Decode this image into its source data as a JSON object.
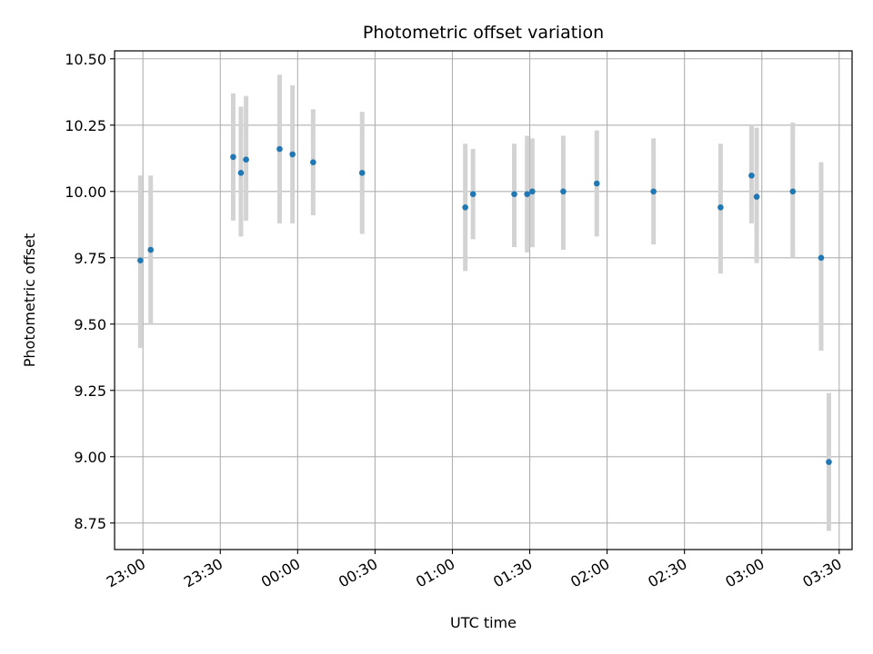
{
  "chart_data": {
    "type": "scatter",
    "title": "Photometric offset variation",
    "xlabel": "UTC time",
    "ylabel": "Photometric offset",
    "x_unit": "UTC time (hours:minutes; values after midnight written as 24:xx, 25:xx ...)",
    "xlim": [
      "22:49",
      "27:35"
    ],
    "ylim": [
      8.65,
      10.53
    ],
    "grid": true,
    "x_ticks": [
      {
        "value": "23:00",
        "label": "23:00"
      },
      {
        "value": "23:30",
        "label": "23:30"
      },
      {
        "value": "24:00",
        "label": "00:00"
      },
      {
        "value": "24:30",
        "label": "00:30"
      },
      {
        "value": "25:00",
        "label": "01:00"
      },
      {
        "value": "25:30",
        "label": "01:30"
      },
      {
        "value": "26:00",
        "label": "02:00"
      },
      {
        "value": "26:30",
        "label": "02:30"
      },
      {
        "value": "27:00",
        "label": "03:00"
      },
      {
        "value": "27:30",
        "label": "03:30"
      }
    ],
    "y_ticks": [
      {
        "value": 8.75,
        "label": "8.75"
      },
      {
        "value": 9.0,
        "label": "9.00"
      },
      {
        "value": 9.25,
        "label": "9.25"
      },
      {
        "value": 9.5,
        "label": "9.50"
      },
      {
        "value": 9.75,
        "label": "9.75"
      },
      {
        "value": 10.0,
        "label": "10.00"
      },
      {
        "value": 10.25,
        "label": "10.25"
      },
      {
        "value": 10.5,
        "label": "10.50"
      }
    ],
    "points": [
      {
        "x": "22:59",
        "y": 9.74,
        "err_low": 9.41,
        "err_high": 10.06
      },
      {
        "x": "23:03",
        "y": 9.78,
        "err_low": 9.5,
        "err_high": 10.06
      },
      {
        "x": "23:35",
        "y": 10.13,
        "err_low": 9.89,
        "err_high": 10.37
      },
      {
        "x": "23:38",
        "y": 10.07,
        "err_low": 9.83,
        "err_high": 10.32
      },
      {
        "x": "23:40",
        "y": 10.12,
        "err_low": 9.89,
        "err_high": 10.36
      },
      {
        "x": "23:53",
        "y": 10.16,
        "err_low": 9.88,
        "err_high": 10.44
      },
      {
        "x": "23:58",
        "y": 10.14,
        "err_low": 9.88,
        "err_high": 10.4
      },
      {
        "x": "24:06",
        "y": 10.11,
        "err_low": 9.91,
        "err_high": 10.31
      },
      {
        "x": "24:25",
        "y": 10.07,
        "err_low": 9.84,
        "err_high": 10.3
      },
      {
        "x": "25:05",
        "y": 9.94,
        "err_low": 9.7,
        "err_high": 10.18
      },
      {
        "x": "25:08",
        "y": 9.99,
        "err_low": 9.82,
        "err_high": 10.16
      },
      {
        "x": "25:24",
        "y": 9.99,
        "err_low": 9.79,
        "err_high": 10.18
      },
      {
        "x": "25:29",
        "y": 9.99,
        "err_low": 9.77,
        "err_high": 10.21
      },
      {
        "x": "25:31",
        "y": 10.0,
        "err_low": 9.79,
        "err_high": 10.2
      },
      {
        "x": "25:43",
        "y": 10.0,
        "err_low": 9.78,
        "err_high": 10.21
      },
      {
        "x": "25:56",
        "y": 10.03,
        "err_low": 9.83,
        "err_high": 10.23
      },
      {
        "x": "26:18",
        "y": 10.0,
        "err_low": 9.8,
        "err_high": 10.2
      },
      {
        "x": "26:44",
        "y": 9.94,
        "err_low": 9.69,
        "err_high": 10.18
      },
      {
        "x": "26:56",
        "y": 10.06,
        "err_low": 9.88,
        "err_high": 10.25
      },
      {
        "x": "26:58",
        "y": 9.98,
        "err_low": 9.73,
        "err_high": 10.24
      },
      {
        "x": "27:12",
        "y": 10.0,
        "err_low": 9.75,
        "err_high": 10.26
      },
      {
        "x": "27:23",
        "y": 9.75,
        "err_low": 9.4,
        "err_high": 10.11
      },
      {
        "x": "27:26",
        "y": 8.98,
        "err_low": 8.72,
        "err_high": 9.24
      }
    ],
    "colors": {
      "point": "#1f77b4",
      "errorbar": "#d3d3d3",
      "grid": "#b0b0b0",
      "axes": "#000000",
      "background": "#ffffff"
    }
  }
}
